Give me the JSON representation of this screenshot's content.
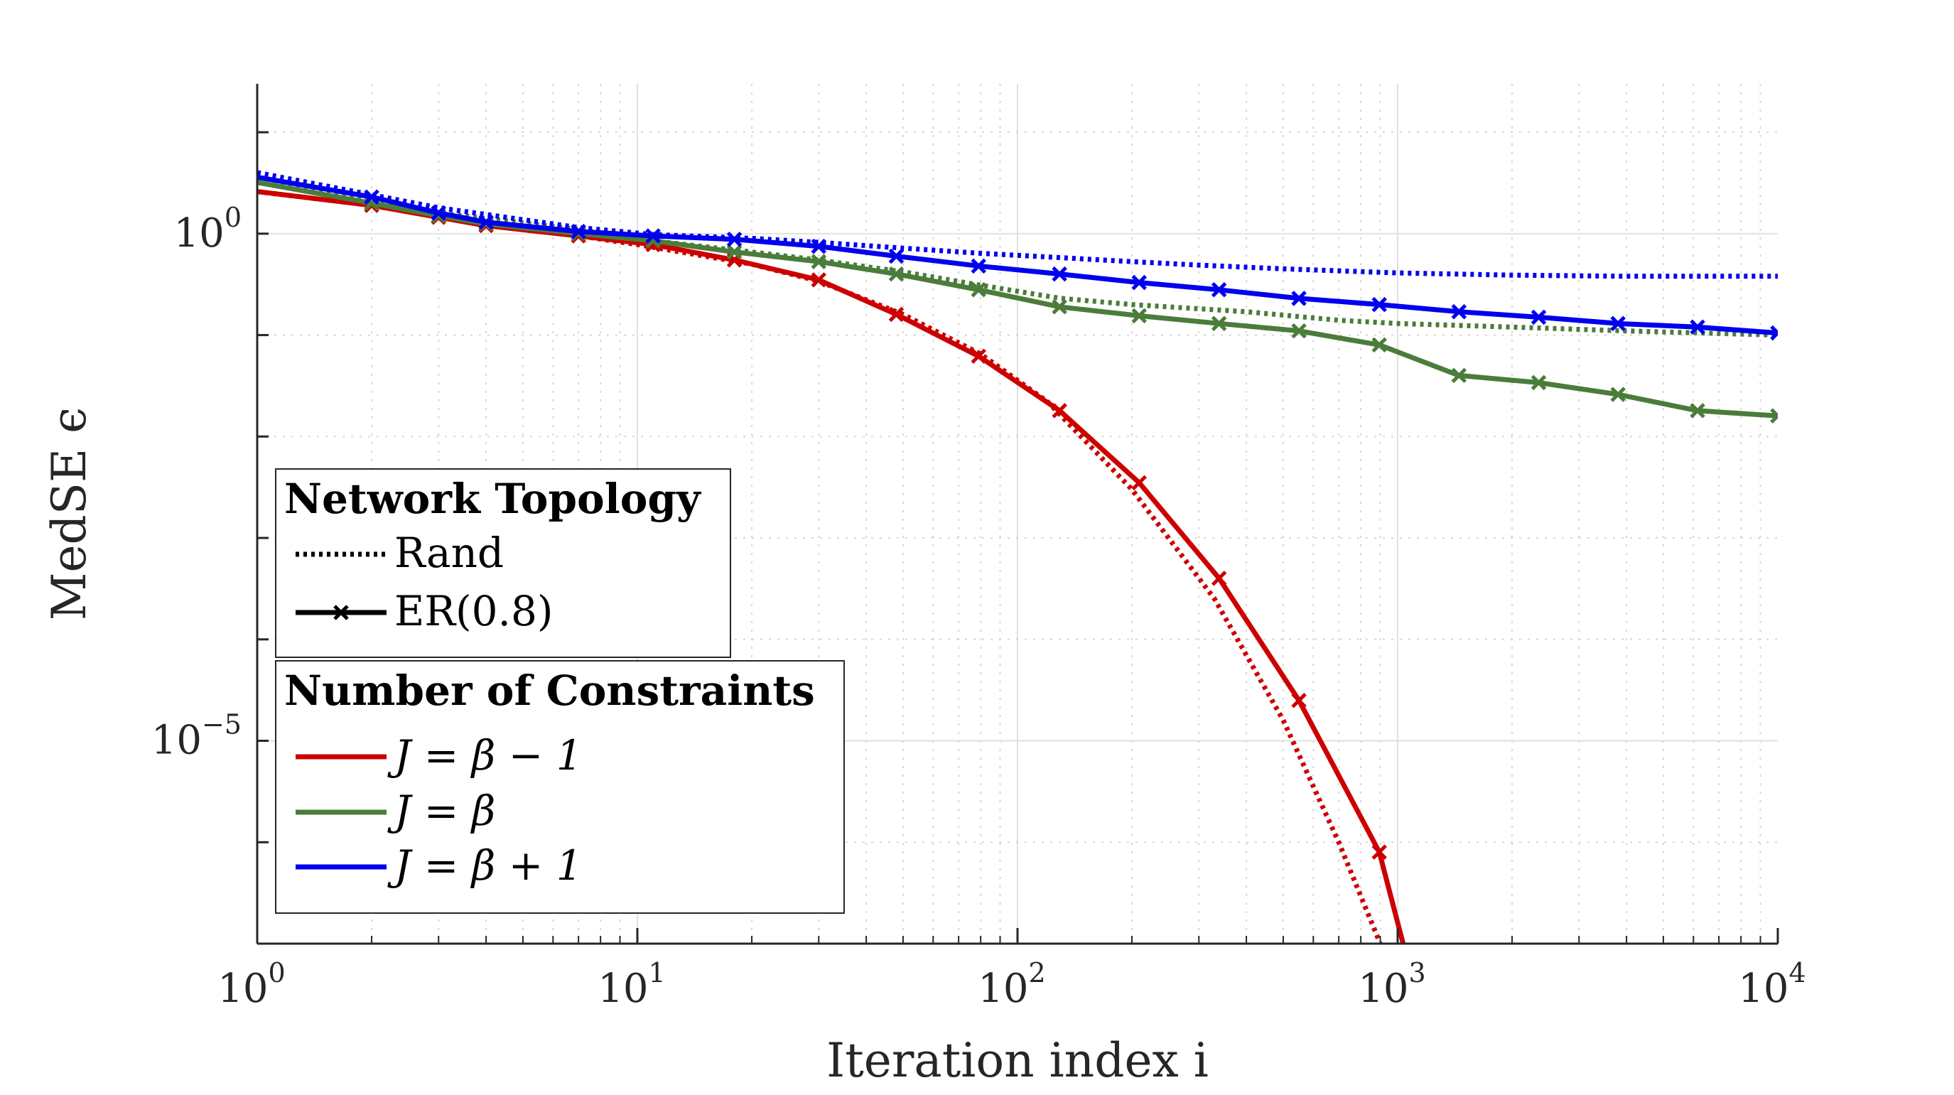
{
  "chart_data": {
    "type": "line",
    "xlabel": "Iteration index i",
    "ylabel": "MedSE ϵ",
    "x_scale": "log",
    "y_scale": "log",
    "xlim": [
      1,
      10000
    ],
    "ylim": [
      1e-07,
      30
    ],
    "grid": true,
    "x_ticks": [
      {
        "base": "10",
        "exp": "0"
      },
      {
        "base": "10",
        "exp": "1"
      },
      {
        "base": "10",
        "exp": "2"
      },
      {
        "base": "10",
        "exp": "3"
      },
      {
        "base": "10",
        "exp": "4"
      }
    ],
    "y_ticks": [
      {
        "base": "10",
        "exp": "0"
      },
      {
        "base": "10",
        "exp": "−5"
      }
    ],
    "colors": {
      "red": "#cc0000",
      "green": "#4a7c3a",
      "blue": "#0000ee"
    },
    "series": [
      {
        "color": "red",
        "style": "dotted",
        "x": [
          1,
          2,
          3,
          5,
          10,
          20,
          30,
          50,
          80,
          120,
          200,
          330,
          500,
          700,
          900,
          1050
        ],
        "y": [
          2.6,
          1.9,
          1.45,
          1.15,
          0.78,
          0.5,
          0.34,
          0.16,
          0.065,
          0.022,
          0.003,
          0.00025,
          1.6e-05,
          1e-06,
          1e-07,
          1.2e-08
        ]
      },
      {
        "color": "red",
        "style": "solid-x",
        "x": [
          1,
          2,
          3,
          4,
          7,
          11,
          18,
          30,
          48,
          79,
          129,
          209,
          339,
          550,
          895,
          1050
        ],
        "y": [
          2.6,
          1.9,
          1.45,
          1.2,
          0.95,
          0.78,
          0.55,
          0.35,
          0.16,
          0.062,
          0.018,
          0.0035,
          0.0004,
          2.5e-05,
          8e-07,
          8e-08
        ]
      },
      {
        "color": "green",
        "style": "dotted",
        "x": [
          1,
          3,
          7,
          11,
          20,
          30,
          50,
          80,
          130,
          200,
          400,
          700,
          1000,
          2000,
          4000,
          10000
        ],
        "y": [
          3.2,
          1.6,
          1.1,
          0.85,
          0.66,
          0.55,
          0.42,
          0.31,
          0.23,
          0.2,
          0.17,
          0.14,
          0.13,
          0.12,
          0.11,
          0.1
        ]
      },
      {
        "color": "green",
        "style": "solid-x",
        "x": [
          1,
          2,
          3,
          4,
          7,
          11,
          18,
          30,
          48,
          79,
          129,
          209,
          339,
          550,
          895,
          1450,
          2350,
          3800,
          6150,
          10000
        ],
        "y": [
          3.2,
          2.0,
          1.5,
          1.25,
          1.0,
          0.85,
          0.66,
          0.53,
          0.4,
          0.28,
          0.19,
          0.155,
          0.13,
          0.11,
          0.08,
          0.04,
          0.034,
          0.026,
          0.018,
          0.016
        ]
      },
      {
        "color": "blue",
        "style": "dotted",
        "x": [
          1,
          3,
          7,
          11,
          20,
          30,
          50,
          80,
          130,
          200,
          300,
          500,
          1000,
          2000,
          4000,
          10000
        ],
        "y": [
          4.0,
          1.8,
          1.15,
          0.98,
          0.9,
          0.82,
          0.72,
          0.64,
          0.58,
          0.53,
          0.49,
          0.45,
          0.41,
          0.39,
          0.38,
          0.38
        ]
      },
      {
        "color": "blue",
        "style": "solid-x",
        "x": [
          1,
          2,
          3,
          4,
          7,
          11,
          18,
          30,
          48,
          79,
          129,
          209,
          339,
          550,
          895,
          1450,
          2350,
          3800,
          6150,
          10000
        ],
        "y": [
          3.6,
          2.3,
          1.6,
          1.3,
          1.05,
          0.95,
          0.88,
          0.75,
          0.6,
          0.48,
          0.4,
          0.33,
          0.28,
          0.23,
          0.2,
          0.17,
          0.15,
          0.13,
          0.12,
          0.105
        ]
      }
    ],
    "legends": [
      {
        "title": "Network Topology",
        "entries": [
          {
            "label": "Rand",
            "style": "dotted",
            "color": "#000000"
          },
          {
            "label": "ER(0.8)",
            "style": "solid-x",
            "color": "#000000"
          }
        ]
      },
      {
        "title": "Number of Constraints",
        "entries": [
          {
            "label": "J = β − 1",
            "style": "solid",
            "color": "red"
          },
          {
            "label": "J = β",
            "style": "solid",
            "color": "green"
          },
          {
            "label": "J = β + 1",
            "style": "solid",
            "color": "blue"
          }
        ]
      }
    ],
    "legend_placement": "lower-left"
  }
}
